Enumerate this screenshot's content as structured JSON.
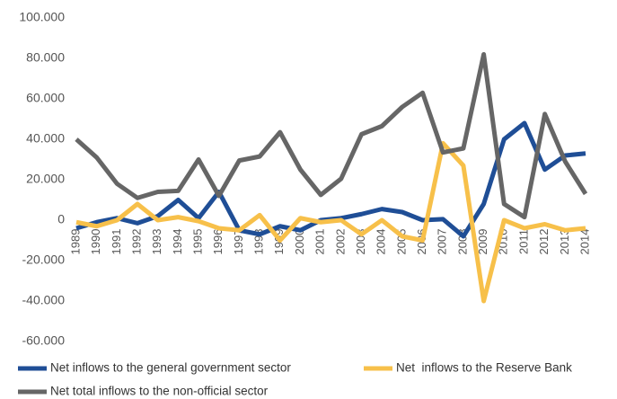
{
  "chart_data": {
    "type": "line",
    "categories": [
      "1989",
      "1990",
      "1991",
      "1992",
      "1993",
      "1994",
      "1995",
      "1996",
      "1997",
      "1998",
      "1999",
      "2000",
      "2001",
      "2002",
      "2003",
      "2004",
      "2005",
      "2006",
      "2007",
      "2008",
      "2009",
      "2010",
      "2011",
      "2012",
      "2013",
      "2014"
    ],
    "series": [
      {
        "name": "Net inflows to the general government sector",
        "color": "#1f4e96",
        "values": [
          -4000,
          -1000,
          1000,
          -1500,
          2000,
          10000,
          1000,
          14000,
          -5000,
          -7000,
          -3000,
          -5000,
          0,
          1000,
          3000,
          5500,
          4000,
          0,
          500,
          -8000,
          8000,
          40000,
          48000,
          25000,
          32000,
          33000
        ]
      },
      {
        "name": "Net  inflows to the Reserve Bank",
        "color": "#f7c04a",
        "values": [
          -1000,
          -3000,
          0,
          8000,
          0,
          1500,
          -500,
          -4000,
          -5000,
          2500,
          -10000,
          1000,
          -1000,
          0,
          -7000,
          0,
          -8000,
          -10000,
          38000,
          27000,
          -40000,
          0,
          -4000,
          -2000,
          -5000,
          -4000
        ]
      },
      {
        "name": "Net total inflows to the non-official sector",
        "color": "#666666",
        "values": [
          40000,
          31000,
          18000,
          11000,
          14000,
          14500,
          30000,
          12000,
          29500,
          31500,
          43500,
          25000,
          12500,
          20500,
          42500,
          46500,
          56000,
          63000,
          33500,
          35500,
          82000,
          8000,
          1500,
          52500,
          29000,
          13000
        ]
      }
    ],
    "ylim": [
      -60000,
      100000
    ],
    "yticks": [
      {
        "value": -60000,
        "label": "-60.000"
      },
      {
        "value": -40000,
        "label": "-40.000"
      },
      {
        "value": -20000,
        "label": "-20.000"
      },
      0,
      {
        "value": 20000,
        "label": "20.000"
      },
      {
        "value": 40000,
        "label": "40.000"
      },
      {
        "value": 60000,
        "label": "60.000"
      },
      {
        "value": 80000,
        "label": "80.000"
      },
      {
        "value": 100000,
        "label": "100.000"
      }
    ],
    "grid": false
  }
}
